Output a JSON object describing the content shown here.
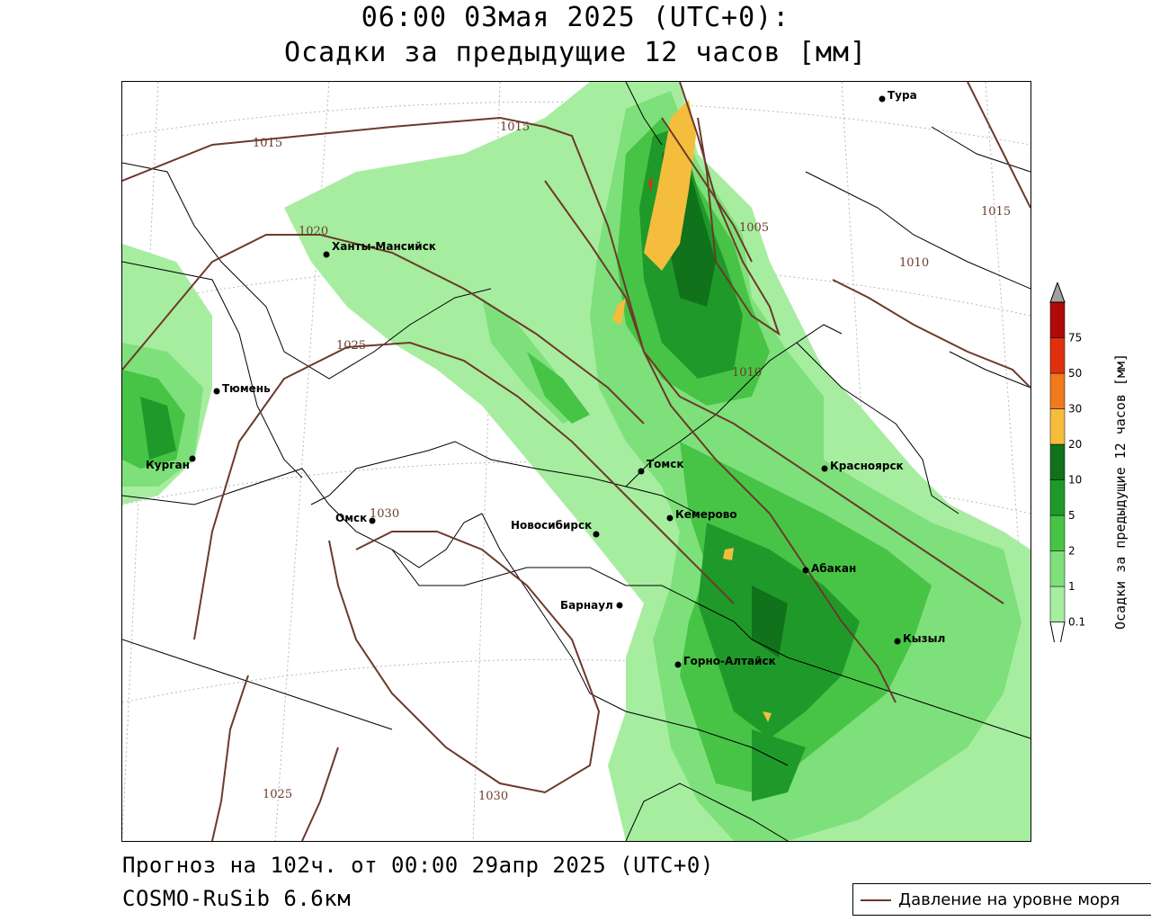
{
  "title": {
    "line1": "06:00 03мая 2025 (UTC+0):",
    "line2": "Осадки за предыдущие 12 часов [мм]"
  },
  "footer": {
    "forecast": "Прогноз на 102ч. от 00:00 29апр 2025 (UTC+0)",
    "model": "COSMO-RuSib 6.6км"
  },
  "legend": {
    "label": "Давление на уровне моря"
  },
  "colorbar": {
    "title": "Осадки за предыдущие 12 часов [мм]",
    "ticks": [
      "0.1",
      "1",
      "2",
      "5",
      "10",
      "20",
      "30",
      "50",
      "75"
    ],
    "colors": [
      "#ffffff",
      "#a6eda0",
      "#7ee07a",
      "#47c446",
      "#1f9a2a",
      "#10721a",
      "#f5bd3c",
      "#f07a1c",
      "#e0300e",
      "#b00a0a",
      "#a0a0a0"
    ]
  },
  "cities": [
    {
      "name": "Тура"
    },
    {
      "name": "Ханты-Мансийск"
    },
    {
      "name": "Тюмень"
    },
    {
      "name": "Курган"
    },
    {
      "name": "Омск"
    },
    {
      "name": "Новосибирск"
    },
    {
      "name": "Томск"
    },
    {
      "name": "Кемерово"
    },
    {
      "name": "Красноярск"
    },
    {
      "name": "Абакан"
    },
    {
      "name": "Барнаул"
    },
    {
      "name": "Горно-Алтайск"
    },
    {
      "name": "Кызыл"
    }
  ],
  "isobar_labels": [
    "1015",
    "1015",
    "1020",
    "1025",
    "1005",
    "1010",
    "1010",
    "1015",
    "1030",
    "1025",
    "1030"
  ]
}
